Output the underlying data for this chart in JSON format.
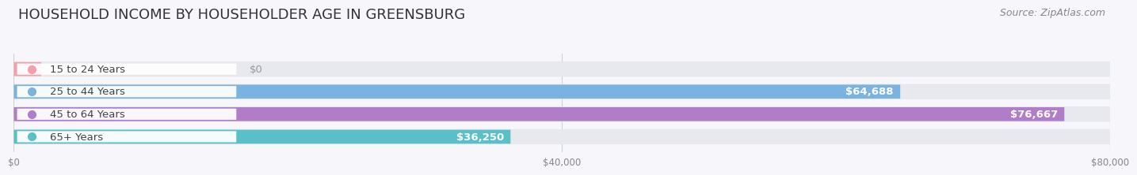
{
  "title": "HOUSEHOLD INCOME BY HOUSEHOLDER AGE IN GREENSBURG",
  "source": "Source: ZipAtlas.com",
  "categories": [
    "15 to 24 Years",
    "25 to 44 Years",
    "45 to 64 Years",
    "65+ Years"
  ],
  "values": [
    0,
    64688,
    76667,
    36250
  ],
  "labels": [
    "$0",
    "$64,688",
    "$76,667",
    "$36,250"
  ],
  "label_outside": [
    true,
    false,
    false,
    false
  ],
  "bar_colors": [
    "#f2a0aa",
    "#7ab3df",
    "#b07ec8",
    "#5bbfc8"
  ],
  "track_bg_color": "#e8e8ef",
  "max_value": 80000,
  "xticks": [
    0,
    40000,
    80000
  ],
  "xticklabels": [
    "$0",
    "$40,000",
    "$80,000"
  ],
  "title_fontsize": 13,
  "source_fontsize": 9,
  "label_fontsize": 9.5,
  "cat_fontsize": 9.5,
  "background_color": "#f7f7fb"
}
